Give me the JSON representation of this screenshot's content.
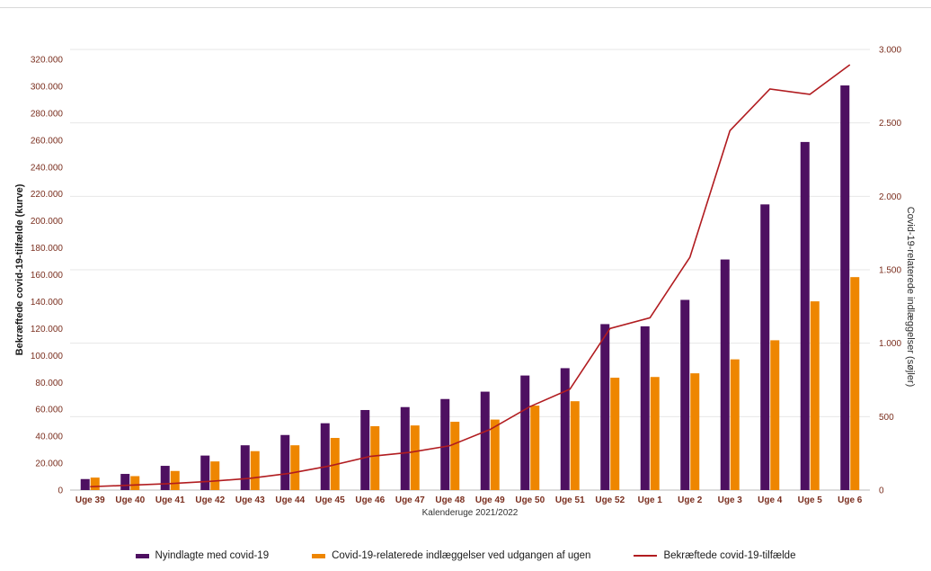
{
  "chart_data": {
    "type": "combo-bar-line",
    "tick_color": "#7a2e1e",
    "grid_color": "#e7e7e7",
    "baseline_color": "#b9b9b9",
    "categories": [
      "Uge 39",
      "Uge 40",
      "Uge 41",
      "Uge 42",
      "Uge 43",
      "Uge 44",
      "Uge 45",
      "Uge 46",
      "Uge 47",
      "Uge 48",
      "Uge 49",
      "Uge 50",
      "Uge 51",
      "Uge 52",
      "Uge 1",
      "Uge 2",
      "Uge 3",
      "Uge 4",
      "Uge 5",
      "Uge 6"
    ],
    "series": [
      {
        "name": "Nyindlagte med covid-19",
        "type": "bar",
        "axis": "right",
        "color": "#4e1061",
        "values": [
          75,
          110,
          165,
          235,
          305,
          375,
          455,
          545,
          565,
          620,
          670,
          780,
          830,
          1130,
          1115,
          1295,
          1570,
          1945,
          2370,
          2755
        ]
      },
      {
        "name": "Covid-19-relaterede indlæggelser ved udgangen af ugen",
        "type": "bar",
        "axis": "right",
        "color": "#ee8600",
        "values": [
          85,
          95,
          130,
          195,
          265,
          305,
          355,
          435,
          440,
          465,
          480,
          575,
          605,
          765,
          770,
          795,
          890,
          1020,
          1285,
          1450
        ]
      },
      {
        "name": "Bekræftede covid-19-tilfælde",
        "type": "line",
        "axis": "left",
        "color": "#b11c20",
        "values": [
          2500,
          3600,
          4800,
          6500,
          8700,
          12500,
          18000,
          25000,
          28000,
          33000,
          45000,
          62000,
          75000,
          120000,
          128000,
          173000,
          267000,
          298000,
          294000,
          316000
        ]
      }
    ],
    "left_axis": {
      "title": "Bekræftede covid-19-tilfælde (kurve)",
      "min": 0,
      "max": 320000,
      "step": 20000,
      "tick_labels": [
        "0",
        "20.000",
        "40.000",
        "60.000",
        "80.000",
        "100.000",
        "120.000",
        "140.000",
        "160.000",
        "180.000",
        "200.000",
        "220.000",
        "240.000",
        "260.000",
        "280.000",
        "300.000",
        "320.000"
      ]
    },
    "right_axis": {
      "title": "Covid-19-relaterede indlæggelser (søjler)",
      "min": 0,
      "max": 3000,
      "step": 500,
      "tick_labels": [
        "0",
        "500",
        "1.000",
        "1.500",
        "2.000",
        "2.500",
        "3.000"
      ]
    },
    "x_axis": {
      "title": "Kalenderuge 2021/2022"
    },
    "grid": true,
    "legend_position": "bottom"
  }
}
